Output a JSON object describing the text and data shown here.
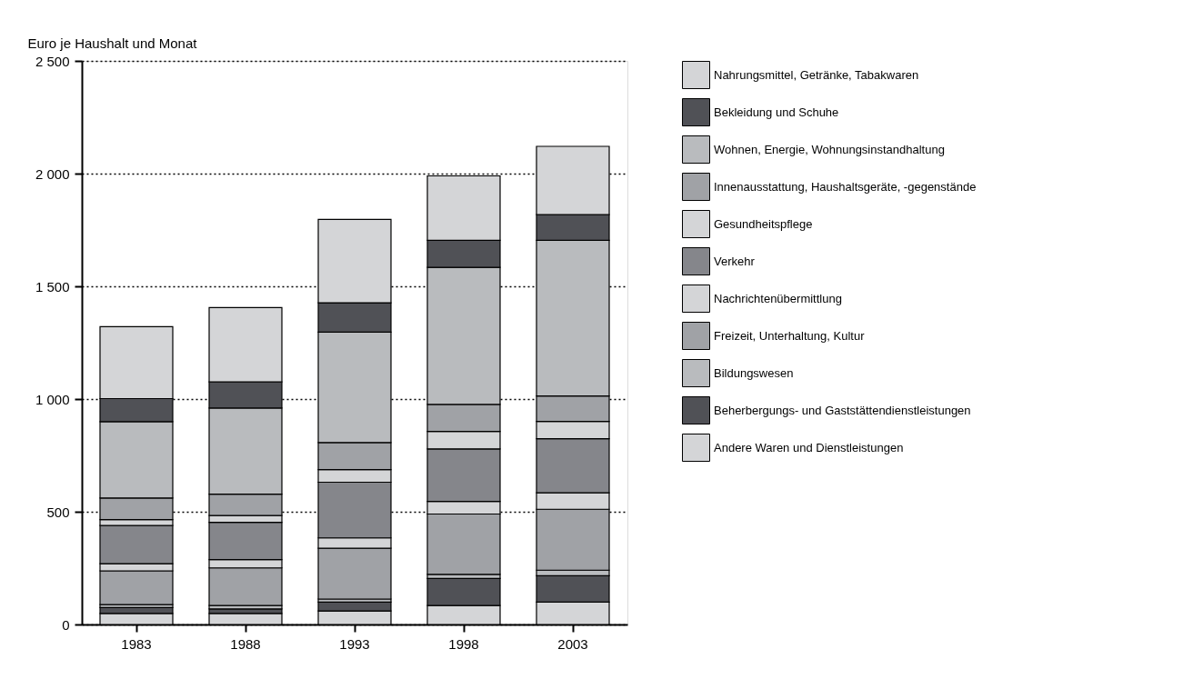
{
  "chart_data": {
    "type": "bar",
    "stacked": true,
    "ylabel": "Euro je Haushalt und Monat",
    "categories": [
      "1983",
      "1988",
      "1993",
      "1998",
      "2003"
    ],
    "series": [
      {
        "name": "Andere Waren und Dienstleistungen",
        "color": "#d4d5d7",
        "values": [
          49,
          49,
          60,
          84,
          99
        ]
      },
      {
        "name": "Beherbergungs- und Gaststättendienstleistungen",
        "color": "#505156",
        "values": [
          26,
          20,
          39,
          120,
          117
        ]
      },
      {
        "name": "Bildungswesen",
        "color": "#b9bbbe",
        "values": [
          13,
          15,
          14,
          18,
          25
        ]
      },
      {
        "name": "Freizeit, Unterhaltung, Kultur",
        "color": "#a0a2a6",
        "values": [
          150,
          167,
          225,
          268,
          270
        ]
      },
      {
        "name": "Nachrichtenübermittlung",
        "color": "#d4d5d7",
        "values": [
          32,
          37,
          46,
          56,
          73
        ]
      },
      {
        "name": "Verkehr",
        "color": "#85868b",
        "values": [
          169,
          165,
          247,
          233,
          240
        ]
      },
      {
        "name": "Gesundheitspflege",
        "color": "#d4d5d7",
        "values": [
          26,
          30,
          56,
          77,
          77
        ]
      },
      {
        "name": "Innenausstattung, Haushaltsgeräte, -gegenstände",
        "color": "#a0a2a6",
        "values": [
          96,
          95,
          120,
          120,
          113
        ]
      },
      {
        "name": "Wohnen, Energie, Wohnungsinstandhaltung",
        "color": "#b9bbbe",
        "values": [
          339,
          382,
          490,
          608,
          690
        ]
      },
      {
        "name": "Bekleidung und Schuhe",
        "color": "#505156",
        "values": [
          102,
          116,
          130,
          120,
          114
        ]
      },
      {
        "name": "Nahrungsmittel, Getränke, Tabakwaren",
        "color": "#d4d5d7",
        "values": [
          319,
          330,
          370,
          286,
          303
        ]
      }
    ],
    "ylim": [
      0,
      2500
    ],
    "yticks": [
      {
        "value": 0,
        "label": "0"
      },
      {
        "value": 500,
        "label": "500"
      },
      {
        "value": 1000,
        "label": "1 000"
      },
      {
        "value": 1500,
        "label": "1 500"
      },
      {
        "value": 2000,
        "label": "2 000"
      },
      {
        "value": 2500,
        "label": "2 500"
      }
    ],
    "grid": "y",
    "legend": "right"
  }
}
